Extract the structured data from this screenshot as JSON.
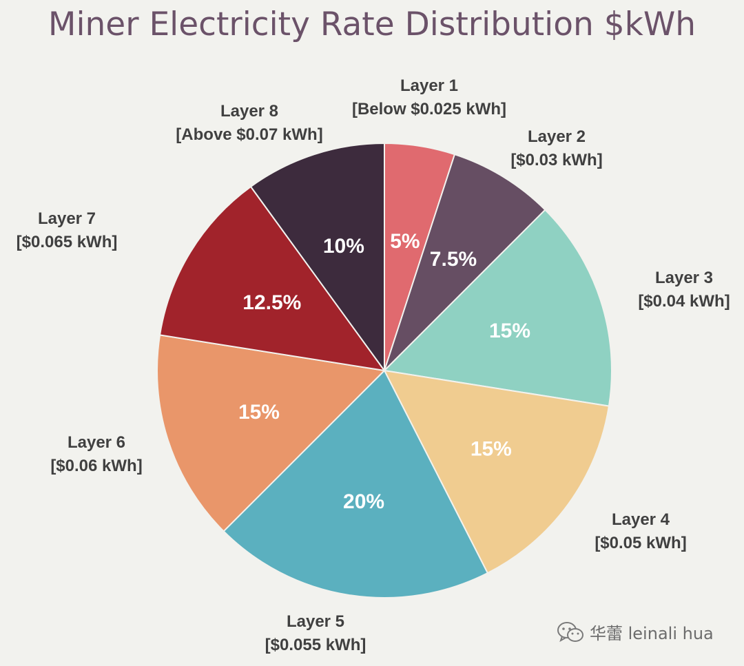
{
  "chart_data": {
    "type": "pie",
    "title": "Miner Electricity Rate Distribution $kWh",
    "slices": [
      {
        "name": "Layer 1",
        "rate": "[Below $0.025 kWh]",
        "value": 5,
        "label": "5%",
        "color": "#e06a6f"
      },
      {
        "name": "Layer 2",
        "rate": "[$0.03 kWh]",
        "value": 7.5,
        "label": "7.5%",
        "color": "#664e63"
      },
      {
        "name": "Layer 3",
        "rate": "[$0.04 kWh]",
        "value": 15,
        "label": "15%",
        "color": "#8fd1c2"
      },
      {
        "name": "Layer 4",
        "rate": "[$0.05 kWh]",
        "value": 15,
        "label": "15%",
        "color": "#f0cc90"
      },
      {
        "name": "Layer 5",
        "rate": "[$0.055 kWh]",
        "value": 20,
        "label": "20%",
        "color": "#5bb0bf"
      },
      {
        "name": "Layer 6",
        "rate": "[$0.06 kWh]",
        "value": 15,
        "label": "15%",
        "color": "#e9966a"
      },
      {
        "name": "Layer 7",
        "rate": "[$0.065 kWh]",
        "value": 12.5,
        "label": "12.5%",
        "color": "#a1232b"
      },
      {
        "name": "Layer 8",
        "rate": "[Above $0.07 kWh]",
        "value": 10,
        "label": "10%",
        "color": "#3d2b3d"
      }
    ]
  },
  "watermark": {
    "text": "华蕾 leinali hua",
    "icon": "wechat-icon"
  }
}
